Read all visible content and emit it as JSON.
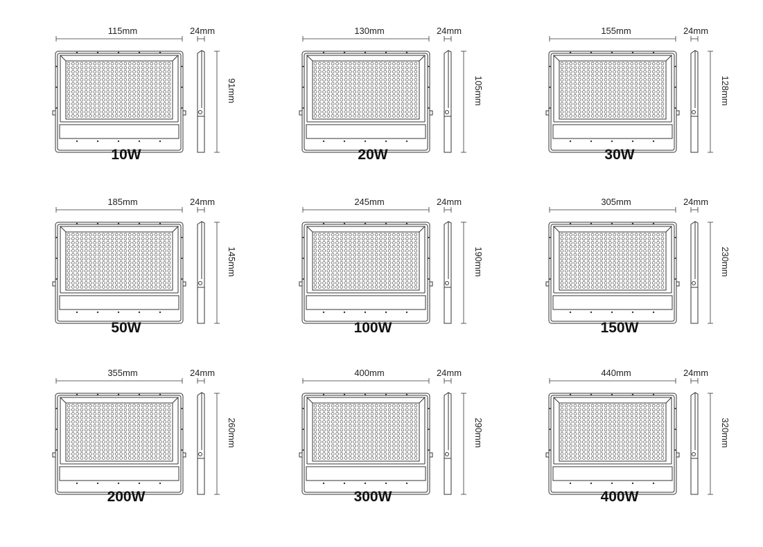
{
  "products": [
    {
      "power": "10W",
      "width": "115mm",
      "depth": "24mm",
      "height": "91mm"
    },
    {
      "power": "20W",
      "width": "130mm",
      "depth": "24mm",
      "height": "105mm"
    },
    {
      "power": "30W",
      "width": "155mm",
      "depth": "24mm",
      "height": "128mm"
    },
    {
      "power": "50W",
      "width": "185mm",
      "depth": "24mm",
      "height": "145mm"
    },
    {
      "power": "100W",
      "width": "245mm",
      "depth": "24mm",
      "height": "190mm"
    },
    {
      "power": "150W",
      "width": "305mm",
      "depth": "24mm",
      "height": "230mm"
    },
    {
      "power": "200W",
      "width": "355mm",
      "depth": "24mm",
      "height": "260mm"
    },
    {
      "power": "300W",
      "width": "400mm",
      "depth": "24mm",
      "height": "290mm"
    },
    {
      "power": "400W",
      "width": "440mm",
      "depth": "24mm",
      "height": "320mm"
    }
  ]
}
